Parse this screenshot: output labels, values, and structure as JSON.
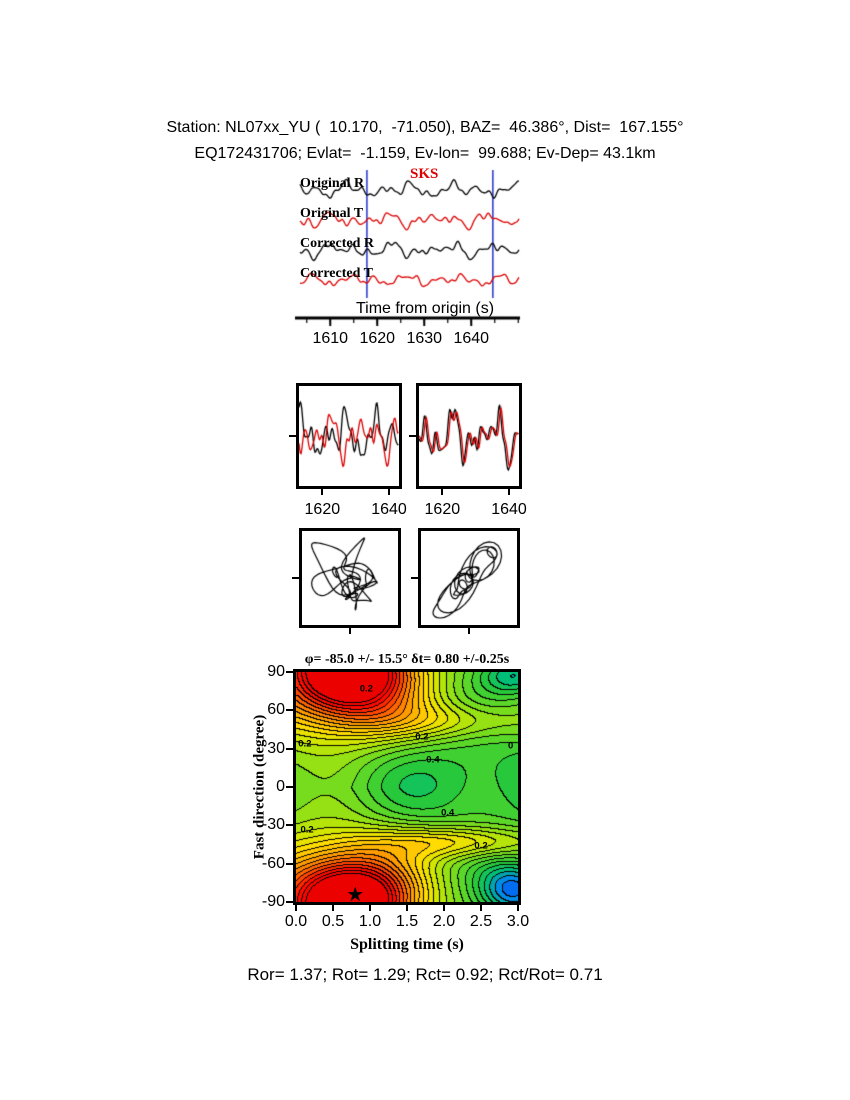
{
  "page": {
    "title_line1": "Station: NL07xx_YU (  10.170,  -71.050), BAZ=  46.386°, Dist=  167.155°",
    "title_line2": "EQ172431706; Evlat=  -1.159, Ev-lon=  99.688; Ev-Dep= 43.1km",
    "footer": "Ror= 1.37; Rot= 1.29; Rct= 0.92; Rct/Rot= 0.71"
  },
  "chart_data": [
    {
      "type": "line",
      "id": "seismogram-traces",
      "xlabel": "Time from origin (s)",
      "x_range": [
        1602.5,
        1650.5
      ],
      "x_ticks": [
        1610,
        1620,
        1630,
        1640
      ],
      "x_tick_labels": [
        "1610",
        "1620",
        "1630",
        "1640"
      ],
      "phase_label": "SKS",
      "window": [
        1617.8,
        1644.6
      ],
      "window_color": "#2233cc",
      "trace_color_r": "#000000",
      "trace_color_t": "#dd0000",
      "traces": [
        {
          "label": "Original R",
          "color": "#000000",
          "ref": "origR",
          "amp": 0.95
        },
        {
          "label": "Original T",
          "color": "#dd0000",
          "ref": "origT",
          "amp": 0.95
        },
        {
          "label": "Corrected R",
          "color": "#000000",
          "ref": "corrR",
          "amp": 0.95
        },
        {
          "label": "Corrected T",
          "color": "#dd0000",
          "ref": "corrT",
          "amp": 0.8
        }
      ],
      "components": {
        "origR": [
          [
            3.6,
            0.085,
            0.4
          ],
          [
            3.2,
            0.14,
            2.1
          ],
          [
            2.6,
            0.21,
            4.0
          ],
          [
            2.0,
            0.3,
            1.3
          ],
          [
            1.5,
            0.4,
            5.1
          ],
          [
            1.0,
            0.52,
            2.8
          ],
          [
            0.7,
            0.66,
            0.9
          ]
        ],
        "origT": [
          [
            3.4,
            0.09,
            1.9
          ],
          [
            3.0,
            0.15,
            5.0
          ],
          [
            2.4,
            0.22,
            0.7
          ],
          [
            1.9,
            0.31,
            3.4
          ],
          [
            1.4,
            0.42,
            6.0
          ],
          [
            1.0,
            0.55,
            1.6
          ],
          [
            0.6,
            0.68,
            4.3
          ]
        ],
        "corrR": [
          [
            3.5,
            0.088,
            2.6
          ],
          [
            3.1,
            0.145,
            5.7
          ],
          [
            2.5,
            0.215,
            1.4
          ],
          [
            1.9,
            0.305,
            4.5
          ],
          [
            1.4,
            0.41,
            0.5
          ],
          [
            1.0,
            0.53,
            3.9
          ],
          [
            0.7,
            0.67,
            2.2
          ]
        ],
        "corrT": [
          [
            3.2,
            0.095,
            4.8
          ],
          [
            2.8,
            0.155,
            1.1
          ],
          [
            2.3,
            0.225,
            5.4
          ],
          [
            1.8,
            0.315,
            2.3
          ],
          [
            1.3,
            0.425,
            0.2
          ],
          [
            0.9,
            0.54,
            5.8
          ],
          [
            0.6,
            0.69,
            3.1
          ]
        ]
      }
    },
    {
      "type": "line",
      "id": "window-pair-panels",
      "x_range": [
        1613,
        1643
      ],
      "x_ticks": [
        1620,
        1640
      ],
      "x_tick_labels": [
        "1620",
        "1640"
      ],
      "panels": [
        {
          "black": {
            "ref": "origR"
          },
          "red": {
            "ref": "origT",
            "scale": 0.95
          }
        },
        {
          "black": {
            "ref": "corrR"
          },
          "red": {
            "ref": "corrR",
            "tshift": 0.45,
            "scale": 0.9
          }
        }
      ]
    },
    {
      "type": "scatter",
      "id": "particle-motion",
      "t_range": [
        1616,
        1646
      ],
      "panels": [
        {
          "x": {
            "ref": "origT"
          },
          "y": {
            "ref": "origR"
          }
        },
        {
          "x": {
            "ref": "corrR",
            "tshift": 0.45,
            "scale": 0.9
          },
          "y": {
            "ref": "corrR"
          }
        }
      ]
    },
    {
      "type": "heatmap",
      "id": "splitting-error-surface",
      "title": "φ= -85.0 +/- 15.5°  δt= 0.80 +/-0.25s",
      "xlabel": "Splitting time (s)",
      "ylabel": "Fast direction (degree)",
      "xlim": [
        0,
        3
      ],
      "ylim": [
        -90,
        90
      ],
      "x_ticks": [
        0,
        0.5,
        1,
        1.5,
        2,
        2.5,
        3
      ],
      "x_tick_labels": [
        "0.0",
        "0.5",
        "1.0",
        "1.5",
        "2.0",
        "2.5",
        "3.0"
      ],
      "y_ticks": [
        90,
        60,
        30,
        0,
        -30,
        -60,
        -90
      ],
      "y_tick_labels": [
        "90",
        "60",
        "30",
        "0",
        "-30",
        "-60",
        "-90"
      ],
      "best": {
        "phi": -85.0,
        "phi_err": 15.5,
        "dt": 0.8,
        "dt_err": 0.25
      },
      "star": {
        "dt": 0.8,
        "phi": -85,
        "glyph": "★"
      },
      "contour_interval": 0.04,
      "contour_labels": [
        {
          "text": "0.2",
          "dt": 0.95,
          "phi": 77
        },
        {
          "text": "0.2",
          "dt": 0.12,
          "phi": 34
        },
        {
          "text": "0.2",
          "dt": 1.7,
          "phi": 39
        },
        {
          "text": "0",
          "dt": 2.9,
          "phi": 32
        },
        {
          "text": "0.4",
          "dt": 1.85,
          "phi": 21
        },
        {
          "text": "0.4",
          "dt": 2.05,
          "phi": -20
        },
        {
          "text": "0.2",
          "dt": 0.15,
          "phi": -34
        },
        {
          "text": "0.2",
          "dt": 2.5,
          "phi": -46
        }
      ],
      "colormap_stops": [
        [
          0.0,
          "#003cff"
        ],
        [
          0.1,
          "#008ce6"
        ],
        [
          0.18,
          "#00be78"
        ],
        [
          0.26,
          "#28c83c"
        ],
        [
          0.34,
          "#5ad728"
        ],
        [
          0.42,
          "#96e114"
        ],
        [
          0.5,
          "#d2e600"
        ],
        [
          0.58,
          "#ffdc00"
        ],
        [
          0.66,
          "#ffb400"
        ],
        [
          0.74,
          "#ff8200"
        ],
        [
          0.82,
          "#ff4600"
        ],
        [
          0.9,
          "#ff0a00"
        ],
        [
          1.0,
          "#e60000"
        ]
      ],
      "surface_model": {
        "base": 0.34,
        "red_blob": {
          "amp": 0.7,
          "t0": 0.75,
          "tw": 0.85,
          "pw": 38
        },
        "left_ridge": {
          "amp": 0.22,
          "t0": 0.2,
          "tw": 1.3,
          "pw": 60
        },
        "valley": {
          "amp": 0.1,
          "p0": 5,
          "pw": 35
        },
        "blue_low": {
          "amp": 0.28,
          "t0": 2.95,
          "tw": 0.45,
          "p0": -80,
          "pw": 20
        },
        "top_right_low": {
          "amp": 0.18,
          "t0": 2.95,
          "tw": 0.45,
          "p0": 88,
          "pw": 14
        },
        "band_neg": {
          "amp": 0.22,
          "p0": -43,
          "pw": 13,
          "t0": 2.2,
          "tw": 1.1
        },
        "band_pos": {
          "amp": 0.15,
          "p0": 52,
          "pw": 15,
          "t0": 2.1,
          "tw": 1.2
        },
        "ripple": {
          "amp": 0.045
        }
      }
    }
  ]
}
